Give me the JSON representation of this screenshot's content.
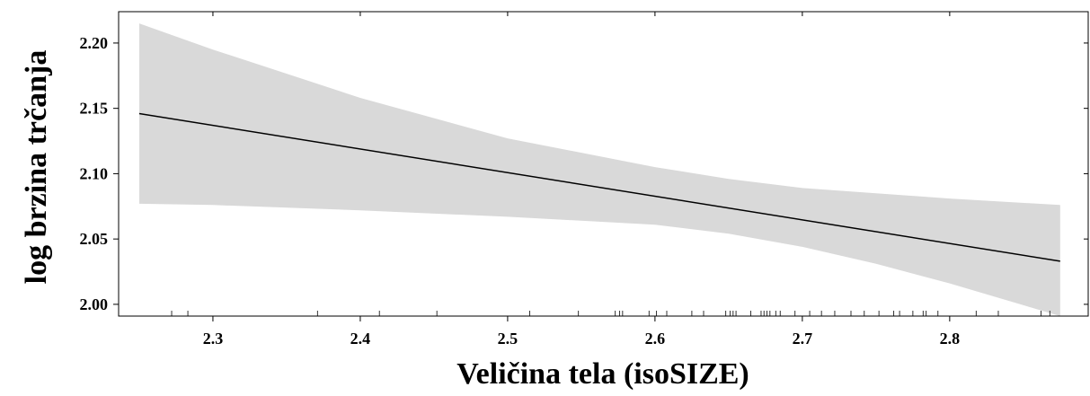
{
  "chart_data": {
    "type": "line",
    "title": "",
    "xlabel": "Veličina tela (isoSIZE)",
    "ylabel": "log brzina trčanja",
    "xlim": [
      2.236,
      2.894
    ],
    "ylim": [
      1.991,
      2.224
    ],
    "x_ticks": [
      2.3,
      2.4,
      2.5,
      2.6,
      2.7,
      2.8
    ],
    "x_tick_labels": [
      "2.3",
      "2.4",
      "2.5",
      "2.6",
      "2.7",
      "2.8"
    ],
    "y_ticks": [
      2.0,
      2.05,
      2.1,
      2.15,
      2.2
    ],
    "y_tick_labels": [
      "2.00",
      "2.05",
      "2.10",
      "2.15",
      "2.20"
    ],
    "grid": false,
    "series": [
      {
        "type": "line",
        "color": "#000000",
        "x": [
          2.25,
          2.875
        ],
        "y": [
          2.146,
          2.033
        ]
      }
    ],
    "confidence_band": {
      "color": "#d9d9d9",
      "x": [
        2.25,
        2.3,
        2.4,
        2.5,
        2.6,
        2.65,
        2.7,
        2.75,
        2.8,
        2.875
      ],
      "upper": [
        2.215,
        2.195,
        2.158,
        2.127,
        2.105,
        2.096,
        2.089,
        2.085,
        2.081,
        2.076
      ],
      "lower": [
        2.077,
        2.076,
        2.072,
        2.067,
        2.061,
        2.054,
        2.044,
        2.031,
        2.016,
        1.991
      ]
    },
    "rug_x": [
      2.272,
      2.283,
      2.371,
      2.413,
      2.452,
      2.515,
      2.548,
      2.573,
      2.576,
      2.578,
      2.596,
      2.601,
      2.608,
      2.625,
      2.633,
      2.648,
      2.651,
      2.653,
      2.655,
      2.665,
      2.672,
      2.674,
      2.676,
      2.678,
      2.682,
      2.685,
      2.695,
      2.705,
      2.713,
      2.722,
      2.733,
      2.742,
      2.752,
      2.762,
      2.766,
      2.775,
      2.782,
      2.784,
      2.792,
      2.818,
      2.833,
      2.862,
      2.868
    ]
  }
}
